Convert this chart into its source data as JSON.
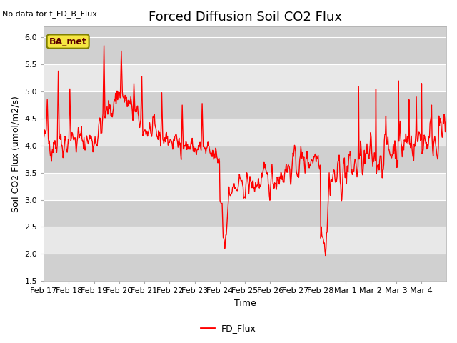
{
  "title": "Forced Diffusion Soil CO2 Flux",
  "xlabel": "Time",
  "ylabel": "Soil CO2 Flux (umol/m2/s)",
  "no_data_label": "No data for f_FD_B_Flux",
  "ba_met_label": "BA_met",
  "legend_label": "FD_Flux",
  "ylim": [
    1.5,
    6.2
  ],
  "yticks": [
    1.5,
    2.0,
    2.5,
    3.0,
    3.5,
    4.0,
    4.5,
    5.0,
    5.5,
    6.0
  ],
  "line_color": "red",
  "line_width": 1.0,
  "bg_color": "#ffffff",
  "plot_bg_color": "#e8e8e8",
  "band_color": "#d0d0d0",
  "date_labels": [
    "Feb 17",
    "Feb 18",
    "Feb 19",
    "Feb 20",
    "Feb 21",
    "Feb 22",
    "Feb 23",
    "Feb 24",
    "Feb 25",
    "Feb 26",
    "Feb 27",
    "Feb 28",
    "Mar 1",
    "Mar 2",
    "Mar 3",
    "Mar 4"
  ],
  "title_fontsize": 13,
  "axis_fontsize": 9,
  "tick_fontsize": 8
}
